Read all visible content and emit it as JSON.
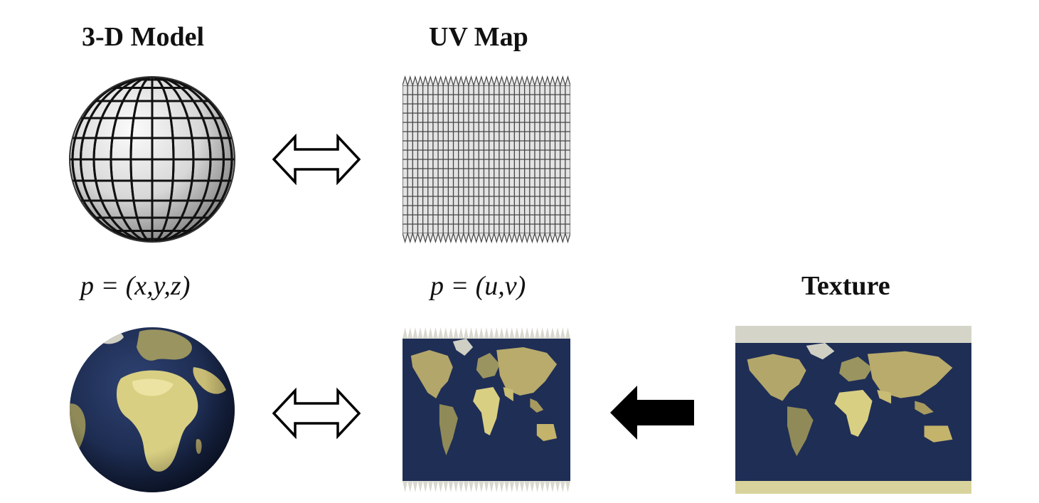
{
  "labels": {
    "model_title": "3-D Model",
    "uv_title": "UV Map",
    "texture_title": "Texture",
    "model_formula": "p = (x,y,z)",
    "uv_formula": "p = (u,v)"
  },
  "colors": {
    "ocean": "#1f2e55",
    "land": "#b3a66a",
    "land_light": "#e6dc9a",
    "ice": "#d4d4c8",
    "grid_line": "#404040",
    "sphere_light": "#f4f4f4",
    "sphere_dark": "#7a7a7a",
    "arrow_fill": "#000000"
  },
  "icons": {
    "double_arrow": "double-arrow-icon",
    "left_arrow": "left-arrow-icon"
  }
}
